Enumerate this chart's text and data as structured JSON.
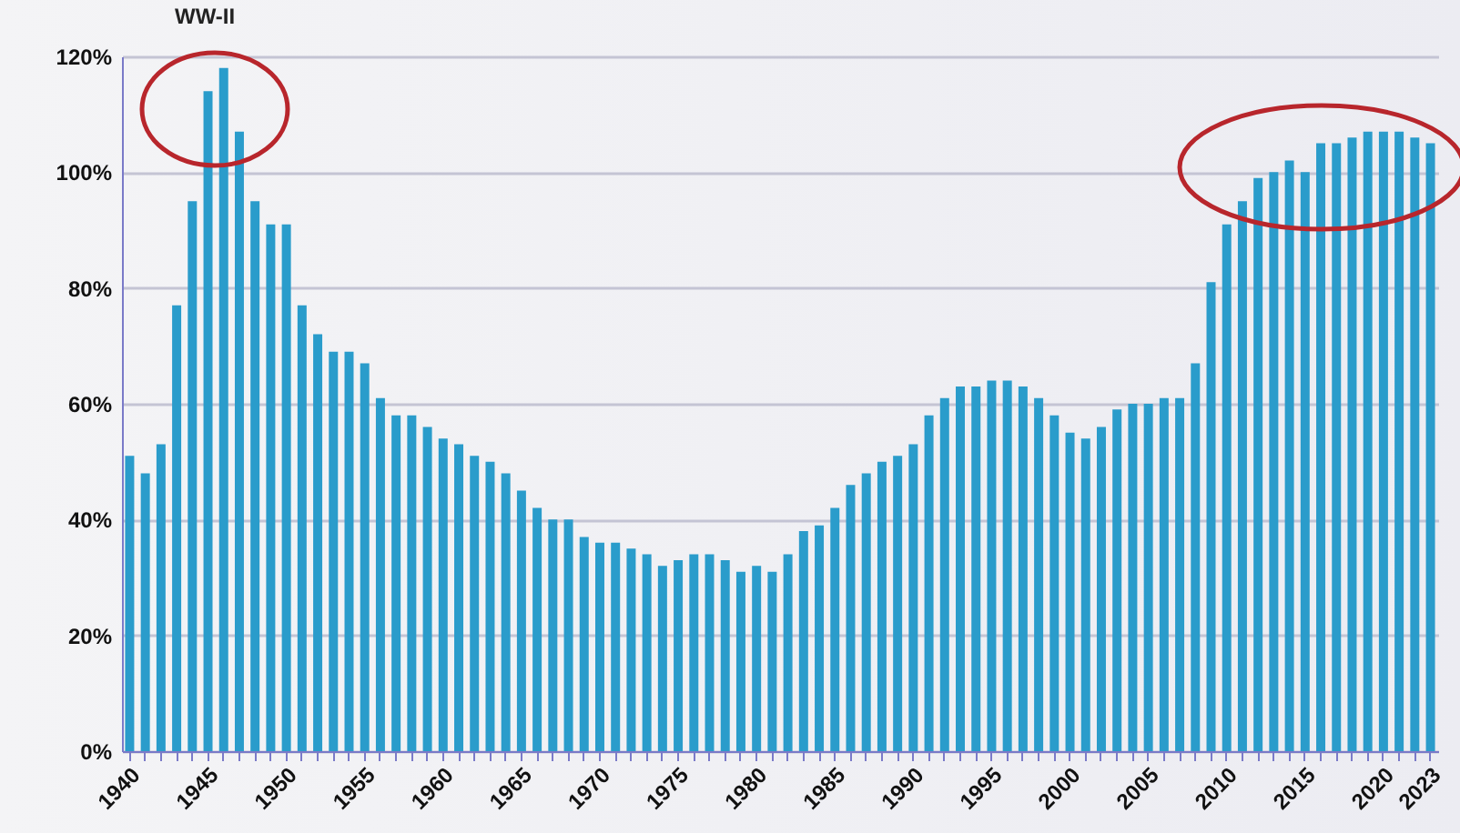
{
  "chart_data": {
    "type": "bar",
    "categories": [
      "1940",
      null,
      null,
      null,
      null,
      "1945",
      null,
      null,
      null,
      null,
      "1950",
      null,
      null,
      null,
      null,
      "1955",
      null,
      null,
      null,
      null,
      "1960",
      null,
      null,
      null,
      null,
      "1965",
      null,
      null,
      null,
      null,
      "1970",
      null,
      null,
      null,
      null,
      "1975",
      null,
      null,
      null,
      null,
      "1980",
      null,
      null,
      null,
      null,
      "1985",
      null,
      null,
      null,
      null,
      "1990",
      null,
      null,
      null,
      null,
      "1995",
      null,
      null,
      null,
      null,
      "2000",
      null,
      null,
      null,
      null,
      "2005",
      null,
      null,
      null,
      null,
      "2010",
      null,
      null,
      null,
      null,
      "2015",
      null,
      null,
      null,
      null,
      "2020",
      null,
      null,
      "2023"
    ],
    "values": [
      51,
      48,
      53,
      77,
      95,
      114,
      118,
      107,
      95,
      91,
      91,
      77,
      72,
      69,
      69,
      67,
      61,
      58,
      58,
      56,
      54,
      53,
      51,
      50,
      48,
      45,
      42,
      40,
      40,
      37,
      36,
      36,
      35,
      34,
      32,
      33,
      34,
      34,
      33,
      31,
      32,
      31,
      34,
      38,
      39,
      42,
      46,
      48,
      50,
      51,
      53,
      58,
      61,
      63,
      63,
      64,
      64,
      63,
      61,
      58,
      55,
      54,
      56,
      59,
      60,
      60,
      61,
      61,
      67,
      81,
      91,
      95,
      99,
      100,
      102,
      100,
      105,
      105,
      106,
      107,
      107,
      107,
      106,
      105
    ],
    "color": "#2a9ccb",
    "ylim": [
      0,
      120
    ],
    "yticks": [
      {
        "value": 0,
        "label": "0%"
      },
      {
        "value": 20,
        "label": "20%"
      },
      {
        "value": 40,
        "label": "40%"
      },
      {
        "value": 60,
        "label": "60%"
      },
      {
        "value": 80,
        "label": "80%"
      },
      {
        "value": 100,
        "label": "100%"
      },
      {
        "value": 120,
        "label": "120%"
      }
    ],
    "grid": "y",
    "annotations": [
      "WW-II"
    ]
  }
}
